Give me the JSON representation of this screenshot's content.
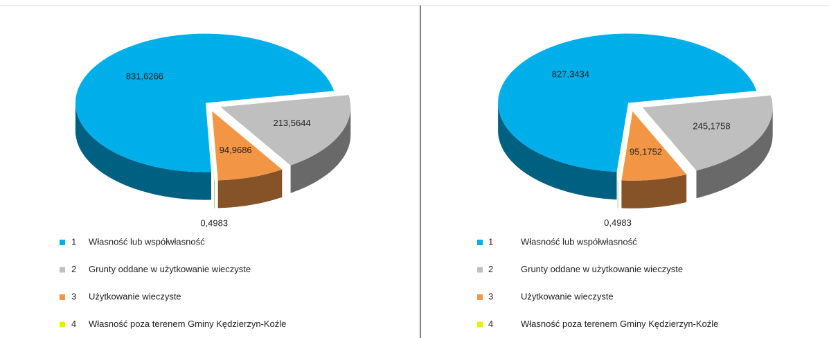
{
  "chart_data": [
    {
      "type": "pie3d",
      "categories": [
        "1",
        "2",
        "3",
        "4"
      ],
      "legend": [
        "Własność lub współwłasność",
        "Grunty oddane w użytkowanie wieczyste",
        "Użytkowanie wieczyste",
        "Własność poza terenem Gminy Kędzierzyn-Koźle"
      ],
      "values": [
        831.6266,
        213.5644,
        94.9686,
        0.4983
      ],
      "value_labels": [
        "831,6266",
        "213,5644",
        "94,9686",
        "0,4983"
      ],
      "colors": [
        "#00aeea",
        "#bfbfbf",
        "#f29646",
        "#e6f000"
      ]
    },
    {
      "type": "pie3d",
      "categories": [
        "1",
        "2",
        "3",
        "4"
      ],
      "legend": [
        "Własność lub współwłasność",
        "Grunty oddane w użytkowanie wieczyste",
        "Użytkowanie wieczyste",
        "Własność poza terenem Gminy Kędzierzyn-Koźle"
      ],
      "values": [
        827.3434,
        245.1758,
        95.1752,
        0.4983
      ],
      "value_labels": [
        "827,3434",
        "245,1758",
        "95,1752",
        "0,4983"
      ],
      "colors": [
        "#00aeea",
        "#bfbfbf",
        "#f29646",
        "#e6f000"
      ]
    }
  ]
}
